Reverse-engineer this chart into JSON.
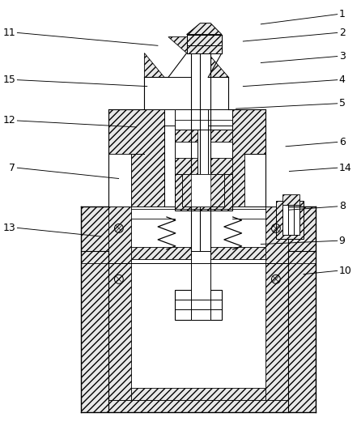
{
  "background_color": "#ffffff",
  "fig_width": 4.46,
  "fig_height": 5.31,
  "right_labels": {
    "1": [
      0.935,
      0.032,
      0.72,
      0.055
    ],
    "2": [
      0.935,
      0.075,
      0.67,
      0.095
    ],
    "3": [
      0.935,
      0.13,
      0.72,
      0.145
    ],
    "4": [
      0.935,
      0.185,
      0.67,
      0.2
    ],
    "5": [
      0.935,
      0.24,
      0.65,
      0.252
    ],
    "6": [
      0.935,
      0.33,
      0.79,
      0.34
    ],
    "14": [
      0.935,
      0.39,
      0.8,
      0.398
    ],
    "8": [
      0.935,
      0.48,
      0.8,
      0.488
    ],
    "9": [
      0.935,
      0.56,
      0.72,
      0.568
    ],
    "10": [
      0.935,
      0.63,
      0.84,
      0.638
    ]
  },
  "left_labels": {
    "11": [
      0.035,
      0.075,
      0.43,
      0.105
    ],
    "15": [
      0.035,
      0.185,
      0.4,
      0.2
    ],
    "12": [
      0.035,
      0.28,
      0.37,
      0.295
    ],
    "7": [
      0.035,
      0.39,
      0.32,
      0.415
    ],
    "13": [
      0.035,
      0.53,
      0.27,
      0.55
    ]
  }
}
